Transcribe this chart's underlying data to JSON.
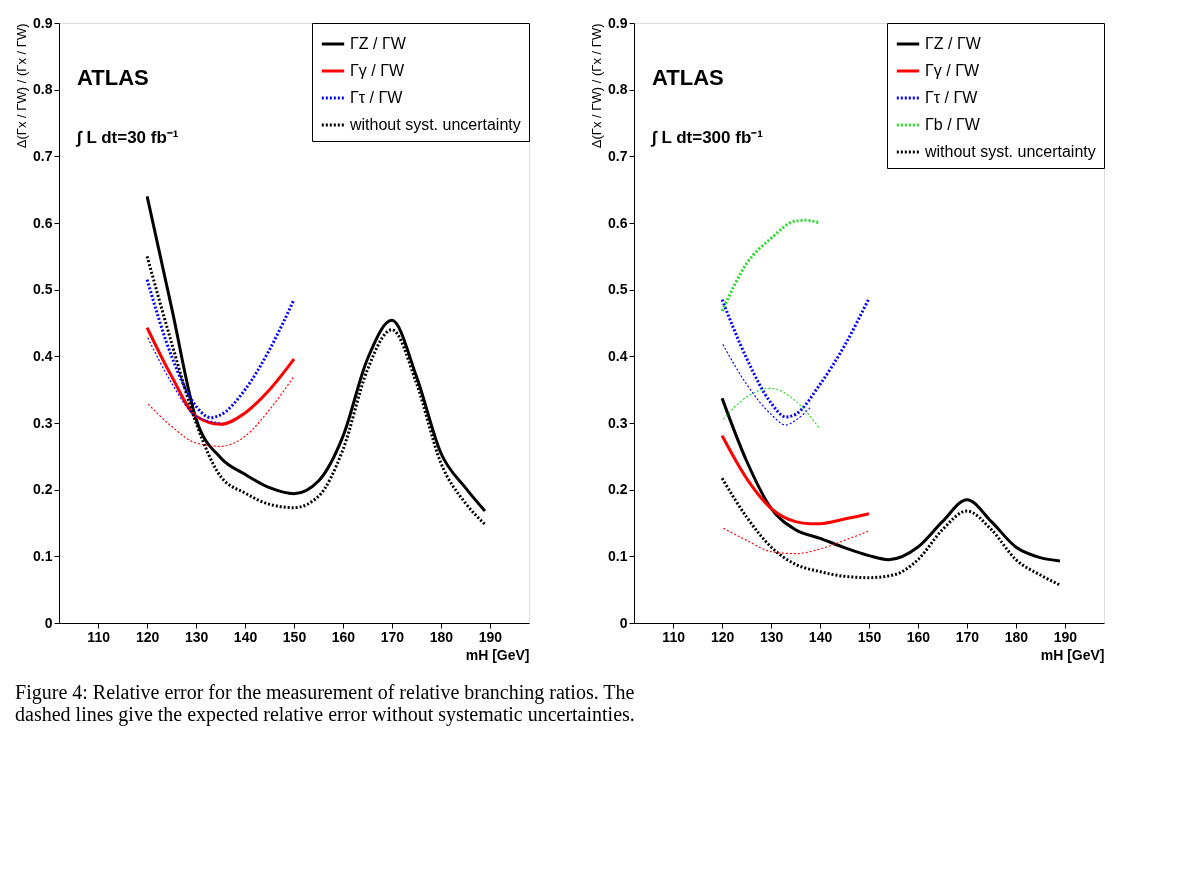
{
  "chart_data": [
    {
      "type": "line",
      "xlabel": "mH [GeV]",
      "ylabel": "Δ(Γx / ΓW) / (Γx / ΓW)",
      "xlim": [
        102,
        198
      ],
      "xticks": [
        110,
        120,
        130,
        140,
        150,
        160,
        170,
        180,
        190
      ],
      "ylim": [
        0,
        0.9
      ],
      "yticks": [
        0,
        0.1,
        0.2,
        0.3,
        0.4,
        0.5,
        0.6,
        0.7,
        0.8,
        0.9
      ],
      "grid": false,
      "legend": "top right",
      "annotations": [
        "ATLAS",
        "∫ L dt=30 fb⁻¹"
      ],
      "series": [
        {
          "name": "ΓZ / ΓW",
          "color": "#000000",
          "line_style": "solid",
          "x": [
            120,
            125,
            130,
            135,
            140,
            145,
            150,
            155,
            160,
            165,
            170,
            175,
            180,
            185,
            189
          ],
          "values": [
            0.64,
            0.473,
            0.306,
            0.248,
            0.223,
            0.203,
            0.194,
            0.213,
            0.28,
            0.396,
            0.454,
            0.37,
            0.255,
            0.203,
            0.168
          ]
        },
        {
          "name": "Γγ / ΓW",
          "color": "#ff0000",
          "line_style": "solid",
          "x": [
            120,
            125,
            130,
            135,
            140,
            145,
            150
          ],
          "values": [
            0.443,
            0.37,
            0.31,
            0.298,
            0.315,
            0.35,
            0.396
          ]
        },
        {
          "name": "Γτ / ΓW",
          "color": "#0000ff",
          "line_style": "dotted",
          "x": [
            120,
            125,
            130,
            133,
            135,
            140,
            145,
            150
          ],
          "values": [
            0.515,
            0.4,
            0.325,
            0.308,
            0.312,
            0.35,
            0.41,
            0.485
          ]
        },
        {
          "name": "without syst. uncertainty",
          "color": "#000000",
          "line_style": "dotted",
          "x": [
            120,
            125,
            130,
            135,
            140,
            145,
            150,
            155,
            160,
            165,
            170,
            175,
            180,
            185,
            189
          ],
          "values": [
            0.55,
            0.42,
            0.3,
            0.22,
            0.195,
            0.178,
            0.173,
            0.19,
            0.26,
            0.38,
            0.44,
            0.36,
            0.24,
            0.18,
            0.148
          ]
        },
        {
          "color": "#ff0000",
          "line_style": "dotted",
          "x": [
            120,
            125,
            130,
            135,
            140,
            145,
            150
          ],
          "values": [
            0.33,
            0.295,
            0.27,
            0.265,
            0.28,
            0.32,
            0.37
          ]
        },
        {
          "color": "#0000ff",
          "line_style": "dotted",
          "x": [
            120,
            125,
            130,
            135
          ],
          "values": [
            0.43,
            0.36,
            0.31,
            0.3
          ]
        }
      ]
    },
    {
      "type": "line",
      "xlabel": "mH [GeV]",
      "ylabel": "Δ(Γx / ΓW) / (Γx / ΓW)",
      "xlim": [
        102,
        198
      ],
      "xticks": [
        110,
        120,
        130,
        140,
        150,
        160,
        170,
        180,
        190
      ],
      "ylim": [
        0,
        0.9
      ],
      "yticks": [
        0,
        0.1,
        0.2,
        0.3,
        0.4,
        0.5,
        0.6,
        0.7,
        0.8,
        0.9
      ],
      "grid": false,
      "legend": "top right",
      "annotations": [
        "ATLAS",
        "∫ L dt=300 fb⁻¹",
        "Figure 4: Relative error for the measurement of relative branching ratios. The dashed lines give the expected relative error without systematic uncertainties."
      ],
      "series": [
        {
          "name": "ΓZ / ΓW",
          "color": "#000000",
          "line_style": "solid",
          "x": [
            120,
            125,
            130,
            135,
            140,
            145,
            150,
            154,
            160,
            165,
            170,
            175,
            180,
            185,
            189
          ],
          "values": [
            0.337,
            0.243,
            0.172,
            0.14,
            0.127,
            0.113,
            0.101,
            0.095,
            0.114,
            0.152,
            0.185,
            0.152,
            0.114,
            0.098,
            0.093
          ]
        },
        {
          "name": "Γγ / ΓW",
          "color": "#ff0000",
          "line_style": "solid",
          "x": [
            120,
            125,
            130,
            135,
            138,
            140,
            145,
            150
          ],
          "values": [
            0.281,
            0.217,
            0.172,
            0.152,
            0.149,
            0.149,
            0.156,
            0.164
          ]
        },
        {
          "name": "Γτ / ΓW",
          "color": "#0000ff",
          "line_style": "dotted",
          "x": [
            120,
            125,
            130,
            133,
            135,
            140,
            145,
            150
          ],
          "values": [
            0.485,
            0.397,
            0.33,
            0.309,
            0.313,
            0.358,
            0.416,
            0.487
          ]
        },
        {
          "name": "Γb / ΓW",
          "color": "#22dd22",
          "line_style": "dotted",
          "x": [
            120,
            125,
            130,
            135,
            137,
            140
          ],
          "values": [
            0.468,
            0.539,
            0.577,
            0.603,
            0.604,
            0.6
          ]
        },
        {
          "name": "without syst. uncertainty",
          "color": "#000000",
          "line_style": "dotted",
          "x": [
            120,
            125,
            130,
            135,
            140,
            145,
            150,
            155,
            160,
            165,
            170,
            175,
            180,
            185,
            189
          ],
          "values": [
            0.217,
            0.159,
            0.114,
            0.088,
            0.077,
            0.07,
            0.068,
            0.072,
            0.095,
            0.14,
            0.168,
            0.14,
            0.095,
            0.072,
            0.057
          ]
        },
        {
          "color": "#ff0000",
          "line_style": "dotted",
          "x": [
            120,
            125,
            130,
            135,
            140,
            145,
            150
          ],
          "values": [
            0.143,
            0.124,
            0.107,
            0.104,
            0.111,
            0.124,
            0.138
          ]
        },
        {
          "color": "#0000ff",
          "line_style": "dotted",
          "x": [
            120,
            125,
            130,
            133,
            135,
            138
          ],
          "values": [
            0.42,
            0.358,
            0.313,
            0.297,
            0.304,
            0.323
          ]
        },
        {
          "color": "#22dd22",
          "line_style": "dotted",
          "x": [
            120,
            125,
            130,
            135,
            140
          ],
          "values": [
            0.304,
            0.339,
            0.352,
            0.333,
            0.291
          ]
        }
      ]
    }
  ]
}
